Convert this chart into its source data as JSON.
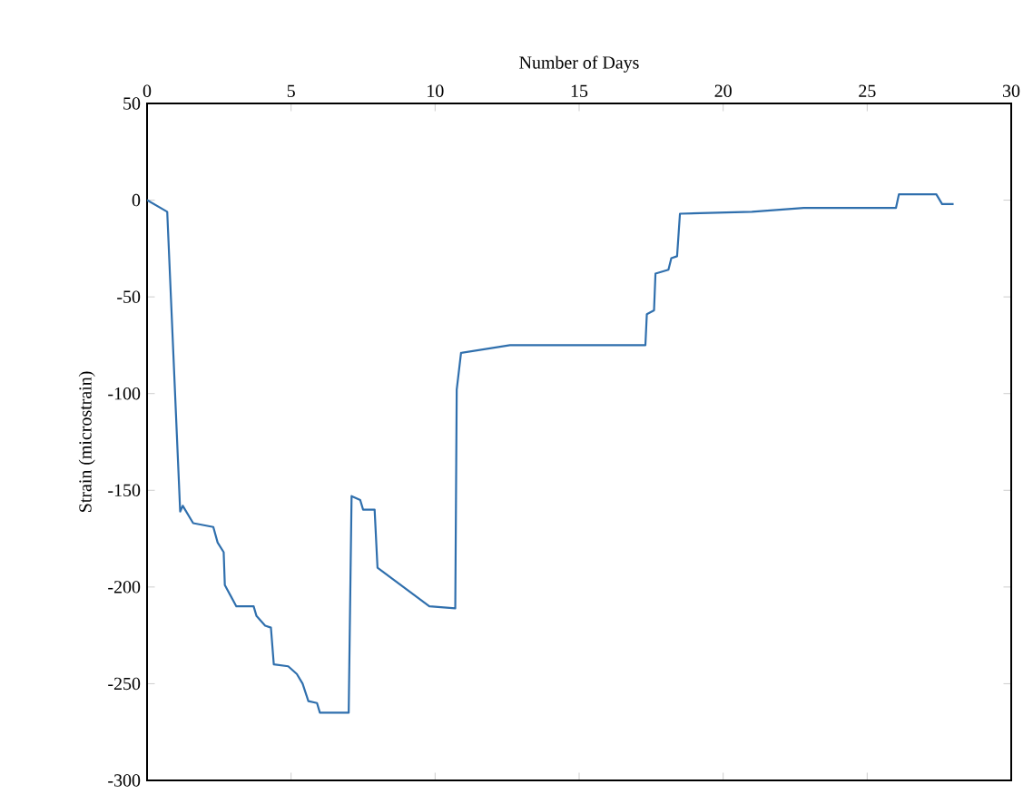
{
  "chart_data": {
    "type": "line",
    "xlabel": "Number of Days",
    "ylabel": "Strain (microstrain)",
    "xlim": [
      0,
      30
    ],
    "xticks": [
      0,
      5,
      10,
      15,
      20,
      25,
      30
    ],
    "ylim": [
      -300,
      50
    ],
    "yticks": [
      -300,
      -250,
      -200,
      -150,
      -100,
      -50,
      0,
      50
    ],
    "x": [
      0,
      0.7,
      1.15,
      1.24,
      1.6,
      2.3,
      2.45,
      2.66,
      2.7,
      3.1,
      3.7,
      3.8,
      4.1,
      4.3,
      4.4,
      4.9,
      5.2,
      5.4,
      5.6,
      5.9,
      6.0,
      7.0,
      7.1,
      7.4,
      7.5,
      7.9,
      8.0,
      9.8,
      10.7,
      10.75,
      10.9,
      12.6,
      17.3,
      17.35,
      17.6,
      17.65,
      18.1,
      18.2,
      18.4,
      18.5,
      21.0,
      22.8,
      26.0,
      26.1,
      27.4,
      27.6,
      28.0
    ],
    "series": [
      {
        "color": "#2f6fad",
        "values": [
          0,
          -6,
          -161,
          -158,
          -167,
          -169,
          -177,
          -182,
          -199,
          -210,
          -210,
          -215,
          -220,
          -221,
          -240,
          -241,
          -245,
          -250,
          -259,
          -260,
          -265,
          -265,
          -153,
          -155,
          -160,
          -160,
          -190,
          -210,
          -211,
          -98,
          -79,
          -75,
          -75,
          -59,
          -57,
          -38,
          -36,
          -30,
          -29,
          -7,
          -6,
          -4,
          -4,
          3,
          3,
          -2,
          -2
        ]
      }
    ],
    "line_style": "solid"
  }
}
